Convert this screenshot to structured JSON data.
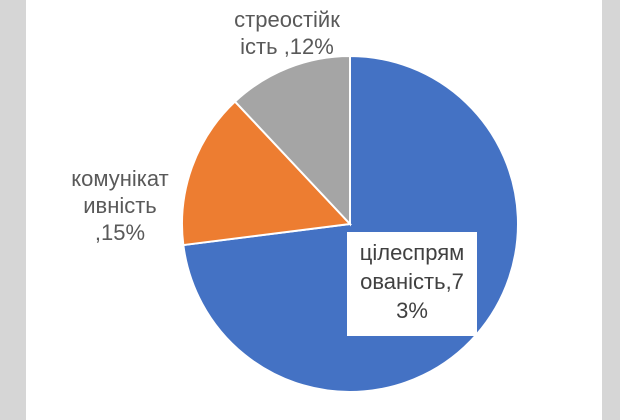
{
  "chart_data": {
    "type": "pie",
    "slices": [
      {
        "label_text": "цілеспрям\nованість,7\n3%",
        "category": "цілеспрямованість",
        "value": 73,
        "color": "#4472c4"
      },
      {
        "label_text": "комунікат\nивність\n,15%",
        "category": "комунікативність",
        "value": 15,
        "color": "#ed7d31"
      },
      {
        "label_text": "стреостійк\nість ,12%",
        "category": "стреостійкість",
        "value": 12,
        "color": "#a5a5a5"
      }
    ],
    "title": "",
    "legend": "none"
  }
}
